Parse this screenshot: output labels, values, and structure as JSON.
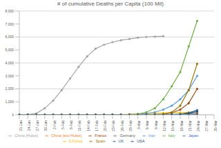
{
  "chart_data": {
    "type": "line",
    "title": "# of cumulative Deaths per Capita (100 Mil)",
    "categories": [
      "21-Jan",
      "24-Jan",
      "27-Jan",
      "30-Jan",
      "2-Feb",
      "5-Feb",
      "8-Feb",
      "11-Feb",
      "14-Feb",
      "17-Feb",
      "20-Feb",
      "23-Feb",
      "26-Feb",
      "29-Feb",
      "3-Mar",
      "6-Mar",
      "9-Mar",
      "12-Mar",
      "15-Mar",
      "18-Mar",
      "21-Mar",
      "24-Mar",
      "27-Mar",
      "30-Mar"
    ],
    "series": [
      {
        "name": "Japan",
        "color": "#4472c4",
        "values": [
          0,
          0,
          0,
          0,
          0,
          0,
          0,
          0,
          1,
          1,
          1,
          2,
          3,
          4,
          5,
          6,
          10,
          12,
          16,
          20,
          25,
          30,
          null,
          null
        ]
      },
      {
        "name": "China (w/o Hubei)",
        "color": "#ed7d31",
        "values": [
          0,
          0,
          0,
          2,
          5,
          10,
          15,
          20,
          22,
          23,
          23,
          24,
          24,
          24,
          24,
          24,
          24,
          24,
          null,
          null,
          null,
          null,
          null,
          null
        ]
      },
      {
        "name": "China (Hubei)",
        "color": "#a5a5a5",
        "values": [
          0,
          20,
          100,
          500,
          1100,
          1900,
          2800,
          3700,
          4500,
          5100,
          5400,
          5600,
          5750,
          5850,
          5950,
          6000,
          6030,
          6060,
          null,
          null,
          null,
          null,
          null,
          null
        ]
      },
      {
        "name": "S.Korea",
        "color": "#ffc000",
        "values": [
          0,
          0,
          0,
          0,
          0,
          0,
          0,
          0,
          0,
          0,
          0,
          5,
          20,
          40,
          60,
          90,
          120,
          140,
          160,
          180,
          190,
          200,
          null,
          null
        ]
      },
      {
        "name": "Iran",
        "color": "#5b9bd5",
        "values": [
          0,
          0,
          0,
          0,
          0,
          0,
          0,
          0,
          0,
          0,
          5,
          15,
          20,
          25,
          30,
          100,
          200,
          400,
          700,
          1200,
          1900,
          3000,
          null,
          null
        ]
      },
      {
        "name": "Italy",
        "color": "#70ad47",
        "values": [
          0,
          0,
          0,
          0,
          0,
          0,
          0,
          0,
          0,
          0,
          0,
          5,
          10,
          30,
          60,
          200,
          500,
          1200,
          2200,
          3300,
          5270,
          7240,
          null,
          null
        ]
      },
      {
        "name": "USA",
        "color": "#264478",
        "values": [
          0,
          0,
          0,
          0,
          0,
          0,
          0,
          0,
          0,
          0,
          0,
          0,
          0,
          1,
          3,
          5,
          8,
          12,
          20,
          50,
          100,
          250,
          null,
          null
        ]
      },
      {
        "name": "France",
        "color": "#9e480e",
        "values": [
          0,
          0,
          0,
          0,
          0,
          0,
          0,
          0,
          1,
          1,
          1,
          1,
          2,
          3,
          5,
          10,
          30,
          50,
          150,
          400,
          900,
          2000,
          null,
          null
        ]
      },
      {
        "name": "Germany",
        "color": "#636363",
        "values": [
          0,
          0,
          0,
          0,
          0,
          0,
          0,
          0,
          0,
          0,
          0,
          0,
          0,
          0,
          0,
          0,
          1,
          2,
          5,
          20,
          50,
          90,
          null,
          null
        ]
      },
      {
        "name": "Spain",
        "color": "#997300",
        "values": [
          0,
          0,
          0,
          0,
          0,
          0,
          0,
          0,
          0,
          0,
          0,
          0,
          0,
          0,
          2,
          10,
          20,
          50,
          200,
          700,
          1900,
          3930,
          null,
          null
        ]
      },
      {
        "name": "UK",
        "color": "#255e91",
        "values": [
          0,
          0,
          0,
          0,
          0,
          0,
          0,
          0,
          0,
          0,
          0,
          0,
          0,
          0,
          1,
          2,
          3,
          5,
          15,
          50,
          150,
          350,
          null,
          null
        ]
      }
    ],
    "ylim": [
      0,
      8000
    ],
    "yticks": [
      0,
      {
        "value": 1000,
        "label": "1,000"
      },
      {
        "value": 2000,
        "label": "2,000"
      },
      {
        "value": 3000,
        "label": "3,000"
      },
      {
        "value": 4000,
        "label": "4,000"
      },
      {
        "value": 5000,
        "label": "5,000"
      },
      {
        "value": 6000,
        "label": "6,000"
      },
      {
        "value": 7000,
        "label": "7,000"
      },
      {
        "value": 8000,
        "label": "8,000"
      }
    ],
    "grid": true,
    "legend": "bottom",
    "marker": "circle"
  }
}
